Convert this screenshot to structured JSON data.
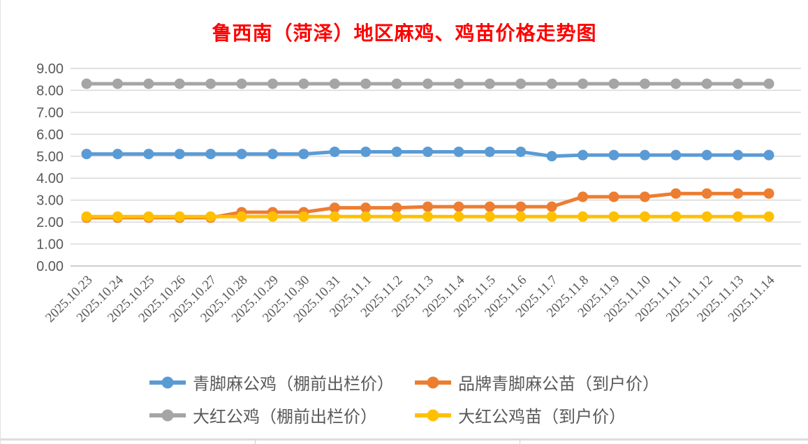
{
  "chart_data": {
    "type": "line",
    "title": "鲁西南（菏泽）地区麻鸡、鸡苗价格走势图",
    "title_color": "#ff0000",
    "xlabel": "",
    "ylabel": "",
    "ylim": [
      0,
      9
    ],
    "ytick_step": 1,
    "ytick_decimals": 2,
    "grid": true,
    "grid_color": "#d9d9d9",
    "axis_label_color": "#595959",
    "legend_position": "bottom",
    "categories": [
      "2025.10.23",
      "2025.10.24",
      "2025.10.25",
      "2025.10.26",
      "2025.10.27",
      "2025.10.28",
      "2025.10.29",
      "2025.10.30",
      "2025.10.31",
      "2025.11.1",
      "2025.11.2",
      "2025.11.3",
      "2025.11.4",
      "2025.11.5",
      "2025.11.6",
      "2025.11.7",
      "2025.11.8",
      "2025.11.9",
      "2025.11.10",
      "2025.11.11",
      "2025.11.12",
      "2025.11.13",
      "2025.11.14"
    ],
    "series": [
      {
        "name": "青脚麻公鸡（棚前出栏价）",
        "color": "#5b9bd5",
        "values": [
          5.1,
          5.1,
          5.1,
          5.1,
          5.1,
          5.1,
          5.1,
          5.1,
          5.2,
          5.2,
          5.2,
          5.2,
          5.2,
          5.2,
          5.2,
          5.0,
          5.05,
          5.05,
          5.05,
          5.05,
          5.05,
          5.05,
          5.05
        ]
      },
      {
        "name": "品牌青脚麻公苗（到户价）",
        "color": "#ed7d31",
        "values": [
          2.2,
          2.2,
          2.2,
          2.2,
          2.2,
          2.45,
          2.45,
          2.45,
          2.65,
          2.65,
          2.65,
          2.7,
          2.7,
          2.7,
          2.7,
          2.7,
          3.15,
          3.15,
          3.15,
          3.3,
          3.3,
          3.3,
          3.3
        ]
      },
      {
        "name": "大红公鸡（棚前出栏价）",
        "color": "#a5a5a5",
        "values": [
          8.3,
          8.3,
          8.3,
          8.3,
          8.3,
          8.3,
          8.3,
          8.3,
          8.3,
          8.3,
          8.3,
          8.3,
          8.3,
          8.3,
          8.3,
          8.3,
          8.3,
          8.3,
          8.3,
          8.3,
          8.3,
          8.3,
          8.3
        ]
      },
      {
        "name": "大红公鸡苗（到户价）",
        "color": "#ffc000",
        "values": [
          2.25,
          2.25,
          2.25,
          2.25,
          2.25,
          2.25,
          2.25,
          2.25,
          2.25,
          2.25,
          2.25,
          2.25,
          2.25,
          2.25,
          2.25,
          2.25,
          2.25,
          2.25,
          2.25,
          2.25,
          2.25,
          2.25,
          2.25
        ]
      }
    ]
  }
}
